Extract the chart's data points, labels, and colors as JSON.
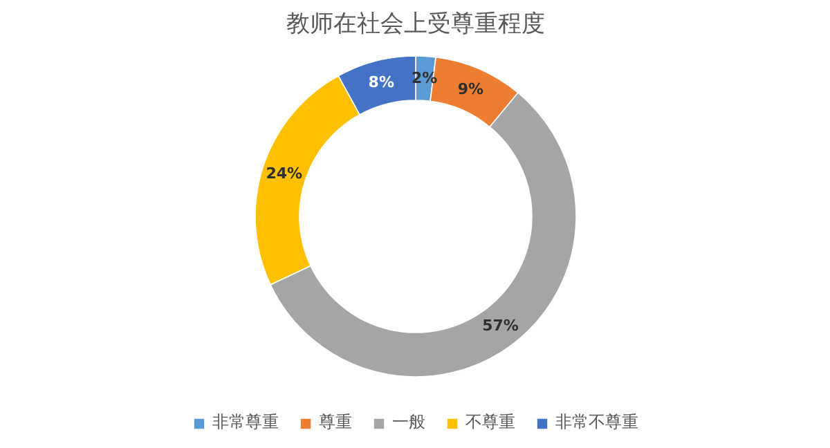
{
  "chart_data": {
    "type": "donut",
    "title": "教师在社会上受尊重程度",
    "categories": [
      "非常尊重",
      "尊重",
      "一般",
      "不尊重",
      "非常不尊重"
    ],
    "values": [
      2,
      9,
      57,
      24,
      8
    ],
    "colors": [
      "#5b9bd5",
      "#ed7d31",
      "#a5a5a5",
      "#ffc000",
      "#4472c4"
    ],
    "value_labels": [
      "2%",
      "9%",
      "57%",
      "24%",
      "8%"
    ],
    "legend": "bottom"
  }
}
